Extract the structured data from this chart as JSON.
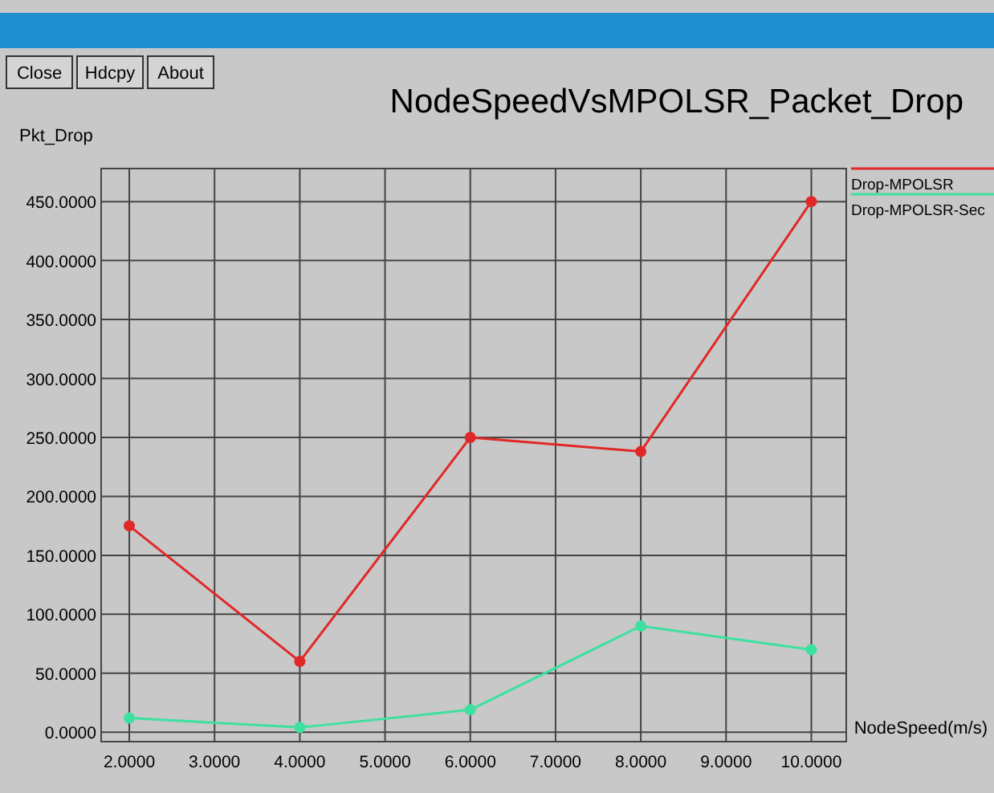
{
  "chart_data": {
    "type": "line",
    "title": "NodeSpeedVsMPOLSR_Packet_Drop",
    "xlabel": "NodeSpeed(m/s)",
    "ylabel": "Pkt_Drop",
    "annotations": [
      "Close",
      "Hdcpy",
      "About"
    ],
    "x": [
      2,
      4,
      6,
      8,
      10
    ],
    "series": [
      {
        "name": "Drop-MPOLSR",
        "color": "#e02828",
        "values": [
          175,
          60,
          250,
          238,
          450
        ]
      },
      {
        "name": "Drop-MPOLSR-Sec",
        "color": "#3ee0a0",
        "values": [
          12,
          4,
          19,
          90,
          70
        ]
      }
    ],
    "xlim": [
      1.67,
      10.41
    ],
    "xticks": [
      {
        "value": 2,
        "label": "2.0000"
      },
      {
        "value": 3,
        "label": "3.0000"
      },
      {
        "value": 4,
        "label": "4.0000"
      },
      {
        "value": 5,
        "label": "5.0000"
      },
      {
        "value": 6,
        "label": "6.0000"
      },
      {
        "value": 7,
        "label": "7.0000"
      },
      {
        "value": 8,
        "label": "8.0000"
      },
      {
        "value": 9,
        "label": "9.0000"
      },
      {
        "value": 10,
        "label": "10.0000"
      }
    ],
    "ylim": [
      -8,
      478
    ],
    "yticks": [
      {
        "value": 0,
        "label": "0.0000"
      },
      {
        "value": 50,
        "label": "50.0000"
      },
      {
        "value": 100,
        "label": "100.0000"
      },
      {
        "value": 150,
        "label": "150.0000"
      },
      {
        "value": 200,
        "label": "200.0000"
      },
      {
        "value": 250,
        "label": "250.0000"
      },
      {
        "value": 300,
        "label": "300.0000"
      },
      {
        "value": 350,
        "label": "350.0000"
      },
      {
        "value": 400,
        "label": "400.0000"
      },
      {
        "value": 450,
        "label": "450.0000"
      }
    ],
    "grid": true,
    "legend": "top right",
    "marker": "circle",
    "line_style": "solid"
  }
}
